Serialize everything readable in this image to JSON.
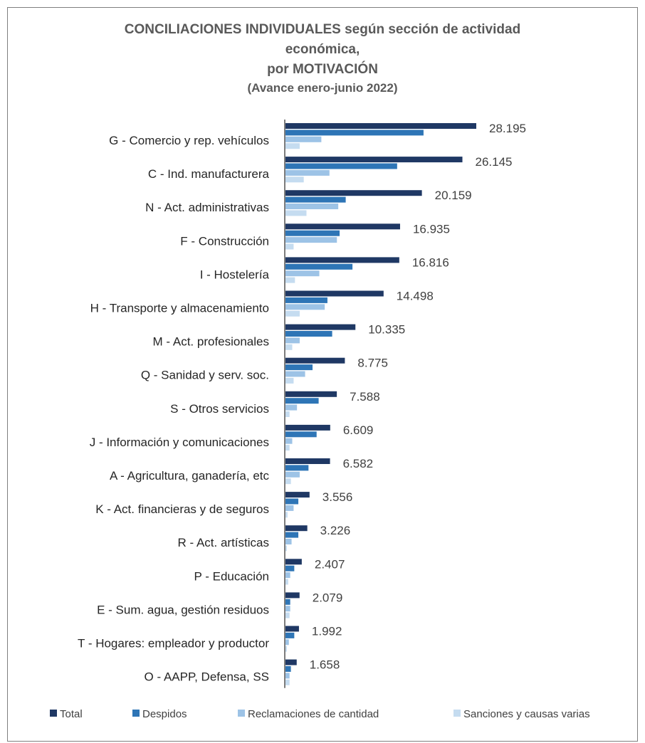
{
  "chart_data": {
    "type": "bar",
    "orientation": "horizontal",
    "title_lines": [
      "CONCILIACIONES INDIVIDUALES según sección de actividad",
      "económica,",
      "por MOTIVACIÓN"
    ],
    "subtitle": "(Avance enero-junio 2022)",
    "categories": [
      "G - Comercio y rep. vehículos",
      "C - Ind. manufacturera",
      "N - Act. administrativas",
      "F - Construcción",
      "I - Hostelería",
      "H - Transporte y almacenamiento",
      "M - Act. profesionales",
      "Q - Sanidad y serv. soc.",
      "S - Otros servicios",
      "J - Información y comunicaciones",
      "A - Agricultura, ganadería, etc",
      "K - Act. financieras y de seguros",
      "R - Act. artísticas",
      "P - Educación",
      "E - Sum. agua, gestión residuos",
      "T - Hogares: empleador y productor",
      "O - AAPP, Defensa, SS"
    ],
    "series": [
      {
        "name": "Total",
        "color": "#1f3864",
        "values": [
          28195,
          26145,
          20159,
          16935,
          16816,
          14498,
          10335,
          8775,
          7588,
          6609,
          6582,
          3556,
          3226,
          2407,
          2079,
          1992,
          1658
        ]
      },
      {
        "name": "Despidos",
        "color": "#2e75b6",
        "values": [
          20400,
          16500,
          8900,
          8000,
          9900,
          6200,
          6900,
          4000,
          4900,
          4600,
          3400,
          1900,
          1900,
          1300,
          700,
          1300,
          800
        ]
      },
      {
        "name": "Reclamaciones de cantidad",
        "color": "#9dc3e6",
        "values": [
          5300,
          6500,
          7800,
          7600,
          5000,
          5800,
          2100,
          2900,
          1700,
          1000,
          2100,
          1200,
          900,
          700,
          700,
          500,
          600
        ]
      },
      {
        "name": "Sanciones y causas varias",
        "color": "#c5dcf0",
        "values": [
          2100,
          2700,
          3100,
          1200,
          1400,
          2100,
          1000,
          1200,
          600,
          600,
          800,
          300,
          200,
          400,
          600,
          200,
          600
        ]
      }
    ],
    "data_labels": [
      "28.195",
      "26.145",
      "20.159",
      "16.935",
      "16.816",
      "14.498",
      "10.335",
      "8.775",
      "7.588",
      "6.609",
      "6.582",
      "3.556",
      "3.226",
      "2.407",
      "2.079",
      "1.992",
      "1.658"
    ],
    "xlim": [
      0,
      30000
    ],
    "grid": false,
    "legend_position": "bottom"
  }
}
